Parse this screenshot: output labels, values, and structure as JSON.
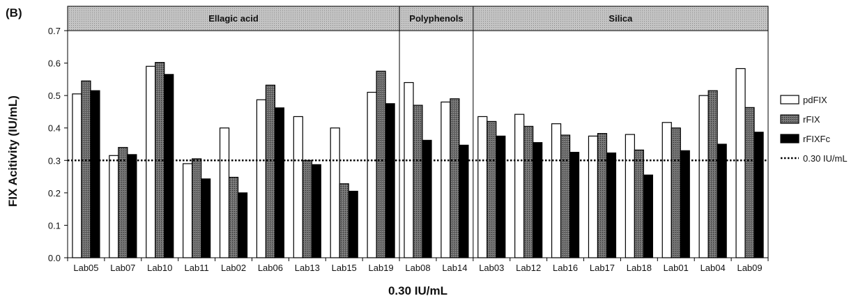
{
  "panel_label": "(B)",
  "chart_data": {
    "type": "bar",
    "xlabel": "0.30 IU/mL",
    "ylabel": "FIX Acitivity (IU/mL)",
    "ylim": [
      0,
      0.7
    ],
    "yticks": [
      "0.0",
      "0.1",
      "0.2",
      "0.3",
      "0.4",
      "0.5",
      "0.6",
      "0.7"
    ],
    "categories": [
      "Lab05",
      "Lab07",
      "Lab10",
      "Lab11",
      "Lab02",
      "Lab06",
      "Lab13",
      "Lab15",
      "Lab19",
      "Lab08",
      "Lab14",
      "Lab03",
      "Lab12",
      "Lab16",
      "Lab17",
      "Lab18",
      "Lab01",
      "Lab04",
      "Lab09"
    ],
    "series": [
      {
        "name": "pdFIX",
        "color": "#ffffff",
        "values": [
          0.505,
          0.315,
          0.59,
          0.29,
          0.4,
          0.487,
          0.435,
          0.4,
          0.51,
          0.54,
          0.48,
          0.435,
          0.442,
          0.413,
          0.375,
          0.38,
          0.417,
          0.5,
          0.583
        ]
      },
      {
        "name": "rFIX",
        "color": "#6f6f6f",
        "values": [
          0.545,
          0.34,
          0.602,
          0.305,
          0.248,
          0.532,
          0.3,
          0.228,
          0.575,
          0.47,
          0.49,
          0.42,
          0.405,
          0.378,
          0.383,
          0.332,
          0.4,
          0.515,
          0.463
        ]
      },
      {
        "name": "rFIXFc",
        "color": "#000000",
        "values": [
          0.515,
          0.318,
          0.565,
          0.243,
          0.2,
          0.462,
          0.287,
          0.205,
          0.475,
          0.362,
          0.347,
          0.375,
          0.355,
          0.325,
          0.323,
          0.255,
          0.33,
          0.35,
          0.387
        ]
      }
    ],
    "reference_line": {
      "label": "0.30 IU/mL",
      "value": 0.3,
      "style": "dotted"
    },
    "groups": [
      {
        "label": "Ellagic acid",
        "start": 0,
        "end": 8
      },
      {
        "label": "Polyphenols",
        "start": 9,
        "end": 10
      },
      {
        "label": "Silica",
        "start": 11,
        "end": 18
      }
    ],
    "legend": {
      "position": "right"
    },
    "grid": false
  }
}
